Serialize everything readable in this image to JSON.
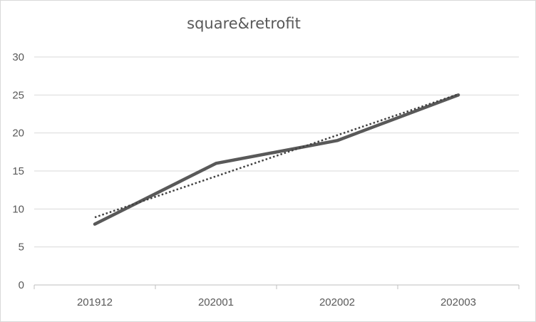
{
  "chart_data": {
    "type": "line",
    "title": "square&retrofit",
    "categories": [
      "201912",
      "202001",
      "202002",
      "202003"
    ],
    "series": [
      {
        "values": [
          8,
          16,
          19,
          25
        ],
        "color": "#595959",
        "style": "solid"
      }
    ],
    "trendline": {
      "type": "linear",
      "values": [
        8.9,
        14.3,
        19.7,
        25.1
      ],
      "color": "#404040",
      "style": "dotted"
    },
    "ylim": [
      0,
      30
    ],
    "yticks": [
      0,
      5,
      10,
      15,
      20,
      25,
      30
    ],
    "xlabel": "",
    "ylabel": "",
    "grid": true,
    "legend": "none"
  }
}
